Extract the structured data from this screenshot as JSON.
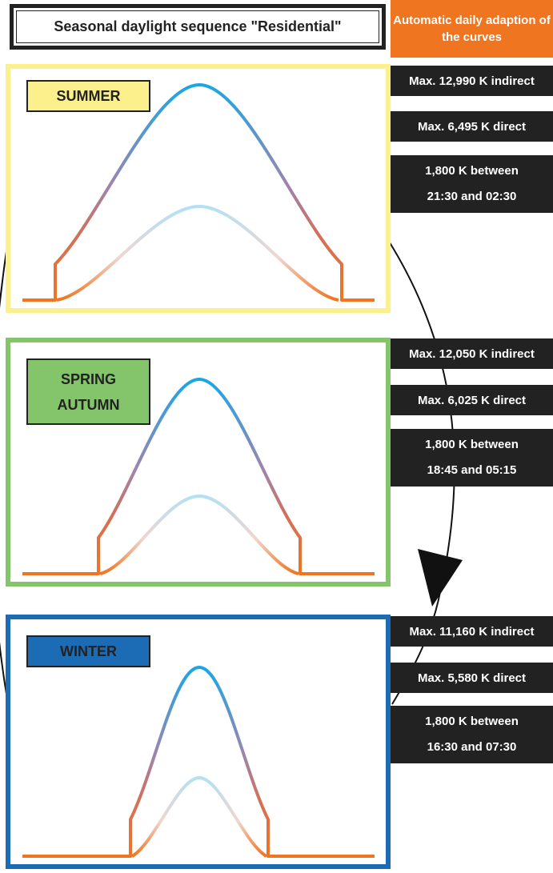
{
  "title": "Seasonal daylight sequence \"Residential\"",
  "adaptation_note": "Automatic daily adaption of the curves",
  "colors": {
    "summer": "#fbf08c",
    "spring_autumn": "#84c46a",
    "winter": "#1b6bb5",
    "accent_orange": "#f07520",
    "curve_blue": "#1aa7e6",
    "info_bg": "#222222"
  },
  "seasons": [
    {
      "label_lines": [
        "SUMMER"
      ],
      "max_indirect": "Max. 12,990 K indirect",
      "max_direct": "Max. 6,495 K direct",
      "night_line1": "1,800 K between",
      "night_line2": "21:30 and 02:30"
    },
    {
      "label_lines": [
        "SPRING",
        "AUTUMN"
      ],
      "max_indirect": "Max. 12,050 K indirect",
      "max_direct": "Max. 6,025 K direct",
      "night_line1": "1,800 K between",
      "night_line2": "18:45 and 05:15"
    },
    {
      "label_lines": [
        "WINTER"
      ],
      "max_indirect": "Max. 11,160 K indirect",
      "max_direct": "Max. 5,580 K direct",
      "night_line1": "1,800 K between",
      "night_line2": "16:30 and 07:30"
    }
  ]
}
